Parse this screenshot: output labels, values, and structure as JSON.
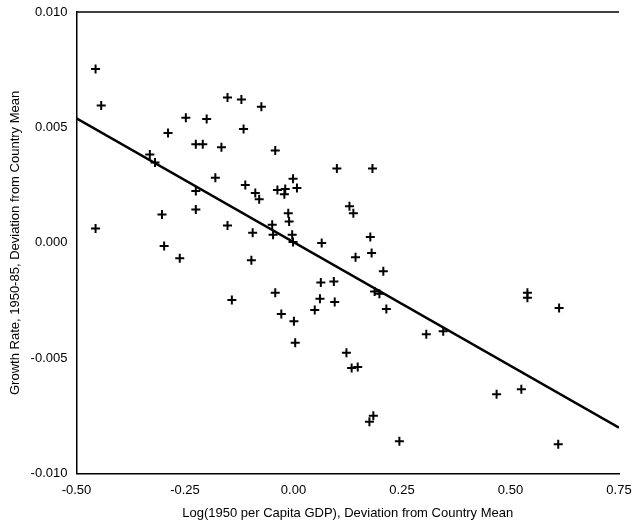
{
  "chart_data": {
    "type": "scatter",
    "x_label": "Log(1950 per Capita GDP), Deviation from Country Mean",
    "y_label": "Growth Rate, 1950-85, Deviation from Country Mean",
    "xlim": [
      -0.5,
      0.75
    ],
    "xticks": [
      {
        "value": -0.5,
        "label": "-0.50"
      },
      {
        "value": -0.25,
        "label": "-0.25"
      },
      {
        "value": 0,
        "label": "0.00"
      },
      {
        "value": 0.25,
        "label": "0.25"
      },
      {
        "value": 0.5,
        "label": "0.50"
      },
      {
        "value": 0.75,
        "label": "0.75"
      }
    ],
    "ylim": [
      -0.01,
      0.01
    ],
    "yticks": [
      {
        "value": -0.01,
        "label": "-0.010"
      },
      {
        "value": -0.005,
        "label": "-0.005"
      },
      {
        "value": 0,
        "label": "0.000"
      },
      {
        "value": 0.005,
        "label": "0.005"
      },
      {
        "value": 0.01,
        "label": "0.010"
      }
    ],
    "grid": false,
    "series": [
      {
        "type": "scatter",
        "color": "#000000",
        "marker": "plus",
        "x": [
          -0.456,
          -0.443,
          -0.456,
          -0.331,
          -0.319,
          -0.289,
          -0.303,
          -0.298,
          -0.262,
          -0.248,
          -0.225,
          -0.209,
          -0.225,
          -0.225,
          -0.2,
          -0.18,
          -0.166,
          -0.152,
          -0.12,
          -0.115,
          -0.111,
          -0.088,
          -0.079,
          -0.074,
          -0.094,
          -0.142,
          -0.152,
          -0.097,
          -0.042,
          -0.037,
          -0.019,
          -0.021,
          -0.012,
          -0.01,
          -0.001,
          0.008,
          -0.003,
          -0.049,
          -0.047,
          -0.042,
          -0.028,
          -0.001,
          0.001,
          0.004,
          0.049,
          0.063,
          0.065,
          0.061,
          0.093,
          0.095,
          0.1,
          0.129,
          0.138,
          0.143,
          0.182,
          0.177,
          0.18,
          0.122,
          0.134,
          0.148,
          0.175,
          0.184,
          0.187,
          0.198,
          0.207,
          0.214,
          0.244,
          0.306,
          0.345,
          0.468,
          0.525,
          0.539,
          0.539,
          0.612,
          0.61
        ],
        "values": [
          0.00753,
          0.00595,
          0.00062,
          0.00383,
          0.00348,
          0.00476,
          0.00123,
          -0.00013,
          -0.00066,
          0.00542,
          0.00427,
          0.00427,
          0.00225,
          0.00145,
          0.00537,
          0.00282,
          0.00414,
          0.0063,
          0.00621,
          0.00493,
          0.00251,
          0.00216,
          0.00189,
          0.0059,
          0.00044,
          -0.00247,
          0.00075,
          -0.00075,
          0.004,
          0.00229,
          0.00233,
          0.00211,
          0.00128,
          0.00093,
          0.00278,
          0.00238,
          0.00035,
          0.00079,
          0.00035,
          -0.00216,
          -0.00308,
          4e-05,
          -0.00339,
          -0.00432,
          -0.00291,
          -0.00172,
          0,
          -0.00242,
          -0.00167,
          -0.00256,
          0.00322,
          0.00159,
          0.00128,
          -0.00062,
          0.00322,
          0.00026,
          -0.00044,
          -0.00476,
          -0.00542,
          -0.00537,
          -0.00775,
          -0.00749,
          -0.00211,
          -0.0022,
          -0.00123,
          -0.00286,
          -0.00859,
          -0.00396,
          -0.00383,
          -0.00656,
          -0.00634,
          -0.00216,
          -0.00238,
          -0.00282,
          -0.00872
        ]
      },
      {
        "type": "line",
        "color": "#000000",
        "line_style": "solid",
        "x": [
          -0.5,
          0.75
        ],
        "values": [
          0.0054,
          -0.008
        ]
      }
    ]
  }
}
